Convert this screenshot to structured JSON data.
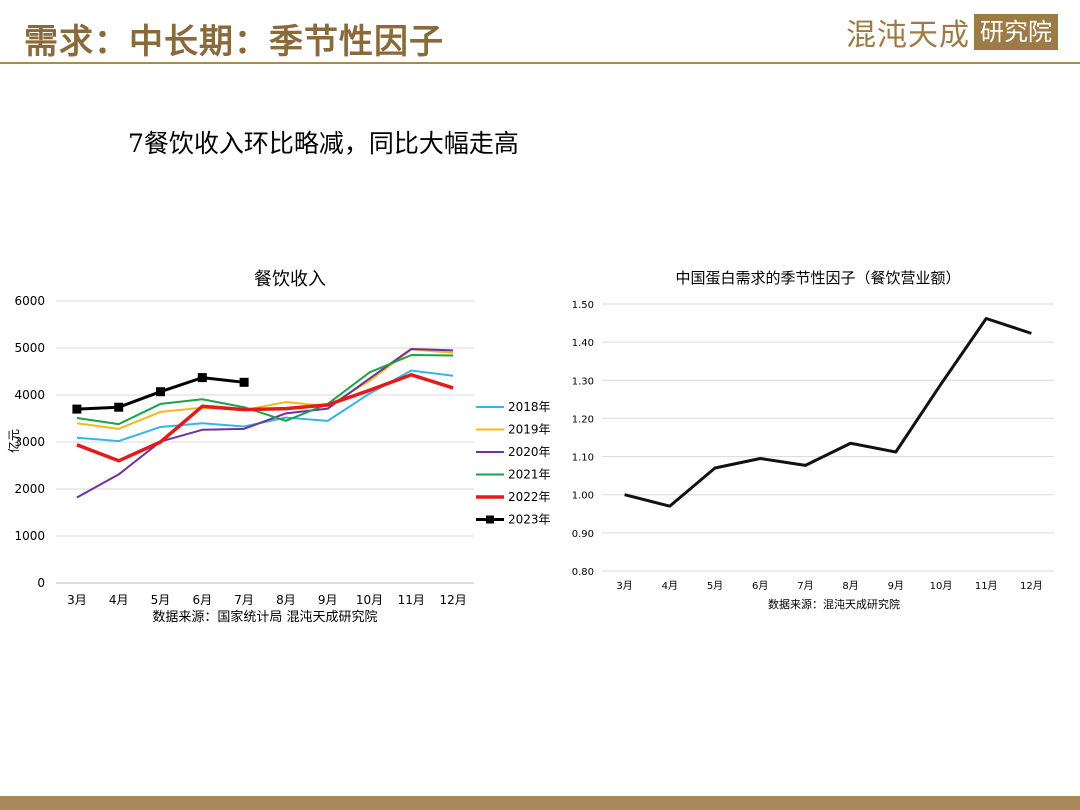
{
  "header": {
    "title": "需求：中长期：季节性因子",
    "logo_main": "混沌天成",
    "logo_box": "研究院"
  },
  "subtitle": "7餐饮收入环比略减，同比大幅走高",
  "colors": {
    "accent": "#a8895a"
  },
  "chart_data": [
    {
      "type": "line",
      "title": "餐饮收入",
      "ylabel": "亿元",
      "ylim": [
        0,
        6000
      ],
      "yticks": [
        0,
        1000,
        2000,
        3000,
        4000,
        5000,
        6000
      ],
      "categories": [
        "3月",
        "4月",
        "5月",
        "6月",
        "7月",
        "8月",
        "9月",
        "10月",
        "11月",
        "12月"
      ],
      "source": "数据来源：国家统计局 混沌天成研究院",
      "legend_position": "right",
      "grid": true,
      "series": [
        {
          "name": "2018年",
          "color": "#35b4e6",
          "width": 2,
          "values": [
            3090,
            3020,
            3320,
            3400,
            3330,
            3520,
            3450,
            4030,
            4520,
            4410
          ]
        },
        {
          "name": "2019年",
          "color": "#f4b81a",
          "width": 2,
          "values": [
            3400,
            3280,
            3640,
            3730,
            3680,
            3850,
            3760,
            4300,
            4970,
            4900
          ]
        },
        {
          "name": "2020年",
          "color": "#7030a0",
          "width": 2,
          "values": [
            1820,
            2310,
            3010,
            3260,
            3280,
            3610,
            3710,
            4350,
            4980,
            4950
          ]
        },
        {
          "name": "2021年",
          "color": "#1aa34a",
          "width": 2,
          "values": [
            3510,
            3380,
            3810,
            3910,
            3740,
            3450,
            3810,
            4480,
            4850,
            4840
          ]
        },
        {
          "name": "2022年",
          "color": "#e31b1b",
          "width": 3.5,
          "values": [
            2940,
            2600,
            3000,
            3760,
            3690,
            3710,
            3790,
            4100,
            4430,
            4150
          ]
        },
        {
          "name": "2023年",
          "color": "#000000",
          "width": 3,
          "marker": "square",
          "values": [
            3700,
            3740,
            4070,
            4370,
            4270,
            null,
            null,
            null,
            null,
            null
          ]
        }
      ]
    },
    {
      "type": "line",
      "title": "中国蛋白需求的季节性因子（餐饮营业额）",
      "ylim": [
        0.8,
        1.5
      ],
      "yticks": [
        "0.80",
        "0.90",
        "1.00",
        "1.10",
        "1.20",
        "1.30",
        "1.40",
        "1.50"
      ],
      "categories": [
        "3月",
        "4月",
        "5月",
        "6月",
        "7月",
        "8月",
        "9月",
        "10月",
        "11月",
        "12月"
      ],
      "source": "数据来源：混沌天成研究院",
      "grid": true,
      "series": [
        {
          "color": "#111111",
          "width": 3,
          "values": [
            1.0,
            0.97,
            1.07,
            1.095,
            1.077,
            1.135,
            1.112,
            1.29,
            1.462,
            1.423
          ]
        }
      ]
    }
  ]
}
